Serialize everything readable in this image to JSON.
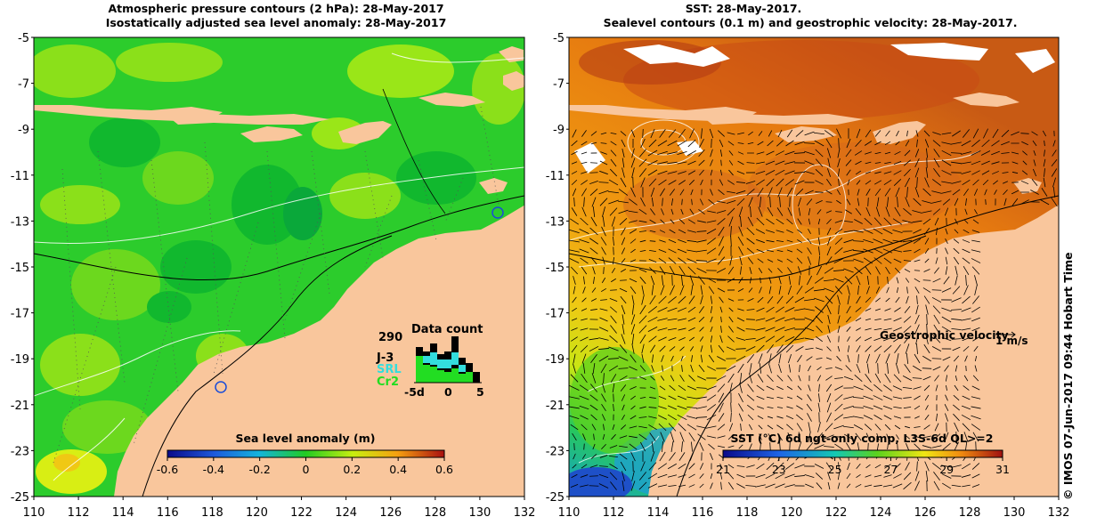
{
  "left_panel": {
    "title_line1": "Atmospheric pressure contours (2 hPa): 28-May-2017",
    "title_line2": "Isostatically adjusted sea level anomaly: 28-May-2017",
    "x_ticks": [
      "110",
      "112",
      "114",
      "116",
      "118",
      "120",
      "122",
      "124",
      "126",
      "128",
      "130",
      "132"
    ],
    "y_ticks": [
      "-5",
      "-7",
      "-9",
      "-11",
      "-13",
      "-15",
      "-17",
      "-19",
      "-21",
      "-23",
      "-25"
    ],
    "colorbar": {
      "label": "Sea level anomaly (m)",
      "ticks": [
        "-0.6",
        "-0.4",
        "-0.2",
        "0",
        "0.2",
        "0.4",
        "0.6"
      ]
    },
    "data_count": {
      "title": "Data count",
      "max_label": "290",
      "missions": [
        {
          "name": "J-3",
          "color": "#000000"
        },
        {
          "name": "SRL",
          "color": "#33dddd"
        },
        {
          "name": "Cr2",
          "color": "#22dd22"
        }
      ],
      "x_ticks": [
        "-5d",
        "0",
        "5"
      ]
    }
  },
  "right_panel": {
    "title_line1": "SST: 28-May-2017.",
    "title_line2": "Sealevel contours (0.1 m) and geostrophic velocity: 28-May-2017.",
    "x_ticks": [
      "110",
      "112",
      "114",
      "116",
      "118",
      "120",
      "122",
      "124",
      "126",
      "128",
      "130",
      "132"
    ],
    "y_ticks": [
      "-5",
      "-7",
      "-9",
      "-11",
      "-13",
      "-15",
      "-17",
      "-19",
      "-21",
      "-23",
      "-25"
    ],
    "velocity_label": "Geostrophic velocity",
    "velocity_scale": "1 m/s",
    "colorbar": {
      "label": "SST (°C) 6d ngt-only comp, L3S-6d QL>=2",
      "ticks": [
        "21",
        "23",
        "25",
        "27",
        "29",
        "31"
      ]
    }
  },
  "credit": "© IMOS 07-Jun-2017 09:44 Hobart Time",
  "colors": {
    "land": "#f9c69c",
    "sla_base": "#22cc22",
    "sst_base": "#f09a10"
  }
}
